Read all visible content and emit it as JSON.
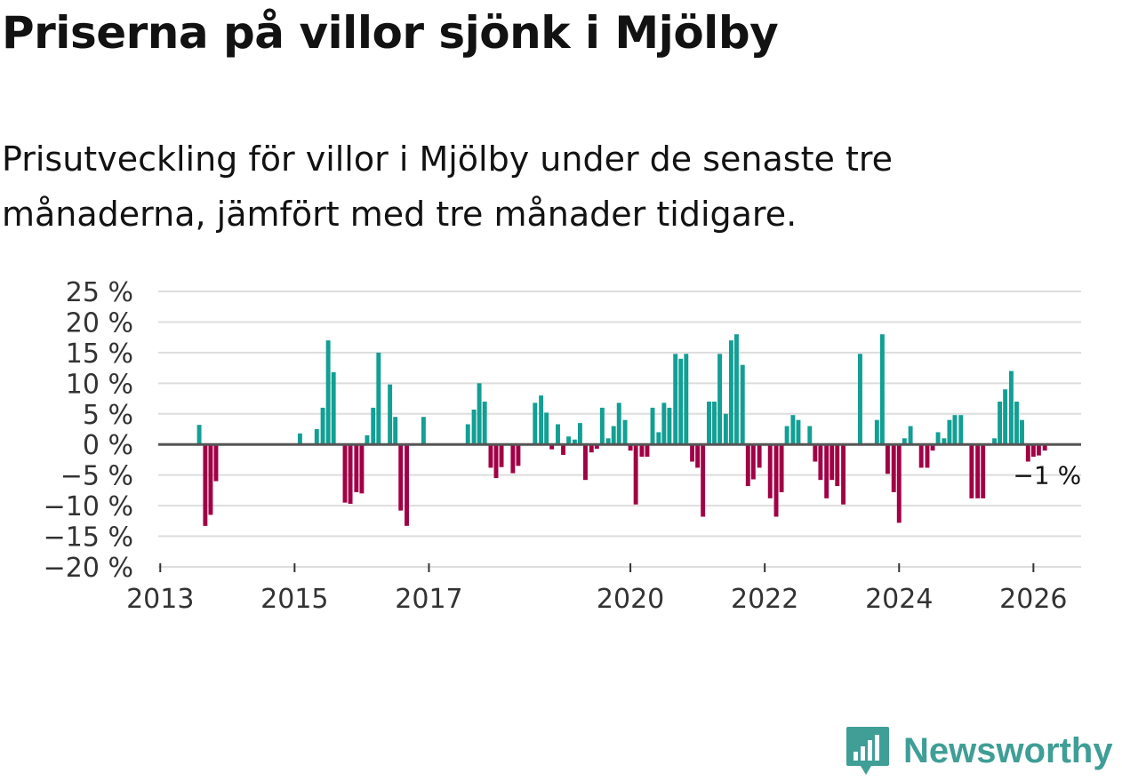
{
  "header": {
    "title": "Priserna på villor sjönk i Mjölby",
    "subtitle": "Prisutveckling för villor i Mjölby under de senaste tre månaderna, jämfört med tre månader tidigare."
  },
  "brand": {
    "name": "Newsworthy",
    "logo_icon": "newsworthy-logo-icon"
  },
  "colors": {
    "positive": "#129f94",
    "negative": "#a10046",
    "gridline": "#dddddd",
    "zero_line": "#555555",
    "brand": "#3f9e96"
  },
  "chart_data": {
    "type": "bar",
    "title": "Priserna på villor sjönk i Mjölby",
    "subtitle": "Prisutveckling för villor i Mjölby under de senaste tre månaderna, jämfört med tre månader tidigare.",
    "xlabel": "",
    "ylabel": "",
    "x_unit": "year (decimal)",
    "xlim": [
      2012.97,
      2026.71
    ],
    "ylim": [
      -20,
      25
    ],
    "x_ticks": [
      2013,
      2015,
      2017,
      2020,
      2022,
      2024,
      2026
    ],
    "x_tick_labels": [
      "2013",
      "2015",
      "2017",
      "2020",
      "2022",
      "2024",
      "2026"
    ],
    "y_ticks": [
      25,
      20,
      15,
      10,
      5,
      0,
      -5,
      -10,
      -15,
      -20
    ],
    "y_tick_labels": [
      "25 %",
      "20 %",
      "15 %",
      "10 %",
      "5 %",
      "0 %",
      "−5 %",
      "−10 %",
      "−15 %",
      "−20 %"
    ],
    "grid": true,
    "series": [
      {
        "name": "Prisutveckling",
        "points": [
          {
            "x": 2013.58,
            "y": 3.2
          },
          {
            "x": 2013.67,
            "y": -13.3
          },
          {
            "x": 2013.75,
            "y": -11.5
          },
          {
            "x": 2013.83,
            "y": -6.0
          },
          {
            "x": 2015.08,
            "y": 1.8
          },
          {
            "x": 2015.33,
            "y": 2.5
          },
          {
            "x": 2015.42,
            "y": 6.0
          },
          {
            "x": 2015.5,
            "y": 17.0
          },
          {
            "x": 2015.58,
            "y": 11.8
          },
          {
            "x": 2015.75,
            "y": -9.5
          },
          {
            "x": 2015.83,
            "y": -9.7
          },
          {
            "x": 2015.92,
            "y": -7.8
          },
          {
            "x": 2016.0,
            "y": -8.0
          },
          {
            "x": 2016.08,
            "y": 1.5
          },
          {
            "x": 2016.17,
            "y": 6.0
          },
          {
            "x": 2016.25,
            "y": 15.0
          },
          {
            "x": 2016.42,
            "y": 9.8
          },
          {
            "x": 2016.5,
            "y": 4.5
          },
          {
            "x": 2016.58,
            "y": -10.8
          },
          {
            "x": 2016.67,
            "y": -13.3
          },
          {
            "x": 2016.92,
            "y": 4.5
          },
          {
            "x": 2017.58,
            "y": 3.3
          },
          {
            "x": 2017.67,
            "y": 5.7
          },
          {
            "x": 2017.75,
            "y": 10.0
          },
          {
            "x": 2017.83,
            "y": 7.0
          },
          {
            "x": 2017.92,
            "y": -3.8
          },
          {
            "x": 2018.0,
            "y": -5.5
          },
          {
            "x": 2018.08,
            "y": -3.7
          },
          {
            "x": 2018.25,
            "y": -4.7
          },
          {
            "x": 2018.33,
            "y": -3.5
          },
          {
            "x": 2018.58,
            "y": 6.8
          },
          {
            "x": 2018.67,
            "y": 8.0
          },
          {
            "x": 2018.75,
            "y": 5.2
          },
          {
            "x": 2018.83,
            "y": -0.8
          },
          {
            "x": 2018.92,
            "y": 3.3
          },
          {
            "x": 2019.0,
            "y": -1.7
          },
          {
            "x": 2019.08,
            "y": 1.3
          },
          {
            "x": 2019.17,
            "y": 0.8
          },
          {
            "x": 2019.25,
            "y": 3.5
          },
          {
            "x": 2019.33,
            "y": -5.8
          },
          {
            "x": 2019.42,
            "y": -1.3
          },
          {
            "x": 2019.5,
            "y": -0.7
          },
          {
            "x": 2019.58,
            "y": 6.0
          },
          {
            "x": 2019.67,
            "y": 1.0
          },
          {
            "x": 2019.75,
            "y": 3.0
          },
          {
            "x": 2019.83,
            "y": 6.8
          },
          {
            "x": 2019.92,
            "y": 4.0
          },
          {
            "x": 2020.0,
            "y": -1.0
          },
          {
            "x": 2020.08,
            "y": -9.8
          },
          {
            "x": 2020.17,
            "y": -2.0
          },
          {
            "x": 2020.25,
            "y": -2.0
          },
          {
            "x": 2020.33,
            "y": 6.0
          },
          {
            "x": 2020.42,
            "y": 2.0
          },
          {
            "x": 2020.5,
            "y": 6.8
          },
          {
            "x": 2020.58,
            "y": 6.0
          },
          {
            "x": 2020.67,
            "y": 14.8
          },
          {
            "x": 2020.75,
            "y": 14.0
          },
          {
            "x": 2020.83,
            "y": 14.8
          },
          {
            "x": 2020.92,
            "y": -2.8
          },
          {
            "x": 2021.0,
            "y": -3.8
          },
          {
            "x": 2021.08,
            "y": -11.8
          },
          {
            "x": 2021.17,
            "y": 7.0
          },
          {
            "x": 2021.25,
            "y": 7.0
          },
          {
            "x": 2021.33,
            "y": 14.8
          },
          {
            "x": 2021.42,
            "y": 5.0
          },
          {
            "x": 2021.5,
            "y": 17.0
          },
          {
            "x": 2021.58,
            "y": 18.0
          },
          {
            "x": 2021.67,
            "y": 13.0
          },
          {
            "x": 2021.75,
            "y": -6.8
          },
          {
            "x": 2021.83,
            "y": -5.7
          },
          {
            "x": 2021.92,
            "y": -3.8
          },
          {
            "x": 2022.08,
            "y": -8.8
          },
          {
            "x": 2022.17,
            "y": -11.8
          },
          {
            "x": 2022.25,
            "y": -7.8
          },
          {
            "x": 2022.33,
            "y": 3.0
          },
          {
            "x": 2022.42,
            "y": 4.8
          },
          {
            "x": 2022.5,
            "y": 4.0
          },
          {
            "x": 2022.67,
            "y": 3.0
          },
          {
            "x": 2022.75,
            "y": -2.8
          },
          {
            "x": 2022.83,
            "y": -5.8
          },
          {
            "x": 2022.92,
            "y": -8.8
          },
          {
            "x": 2023.0,
            "y": -5.8
          },
          {
            "x": 2023.08,
            "y": -6.8
          },
          {
            "x": 2023.17,
            "y": -9.8
          },
          {
            "x": 2023.42,
            "y": 14.8
          },
          {
            "x": 2023.67,
            "y": 4.0
          },
          {
            "x": 2023.75,
            "y": 18.0
          },
          {
            "x": 2023.83,
            "y": -4.8
          },
          {
            "x": 2023.92,
            "y": -7.8
          },
          {
            "x": 2024.0,
            "y": -12.8
          },
          {
            "x": 2024.08,
            "y": 1.0
          },
          {
            "x": 2024.17,
            "y": 3.0
          },
          {
            "x": 2024.33,
            "y": -3.8
          },
          {
            "x": 2024.42,
            "y": -3.8
          },
          {
            "x": 2024.5,
            "y": -1.0
          },
          {
            "x": 2024.58,
            "y": 2.0
          },
          {
            "x": 2024.67,
            "y": 1.0
          },
          {
            "x": 2024.75,
            "y": 4.0
          },
          {
            "x": 2024.83,
            "y": 4.8
          },
          {
            "x": 2024.92,
            "y": 4.8
          },
          {
            "x": 2025.08,
            "y": -8.8
          },
          {
            "x": 2025.17,
            "y": -8.8
          },
          {
            "x": 2025.25,
            "y": -8.8
          },
          {
            "x": 2025.42,
            "y": 1.0
          },
          {
            "x": 2025.5,
            "y": 7.0
          },
          {
            "x": 2025.58,
            "y": 9.0
          },
          {
            "x": 2025.67,
            "y": 12.0
          },
          {
            "x": 2025.75,
            "y": 7.0
          },
          {
            "x": 2025.83,
            "y": 4.0
          },
          {
            "x": 2025.92,
            "y": -2.8
          },
          {
            "x": 2026.0,
            "y": -2.0
          },
          {
            "x": 2026.08,
            "y": -1.8
          },
          {
            "x": 2026.17,
            "y": -1.0
          }
        ]
      }
    ],
    "annotations": [
      {
        "text": "−1 %",
        "x": 2026.17,
        "y": -5.0
      }
    ]
  }
}
